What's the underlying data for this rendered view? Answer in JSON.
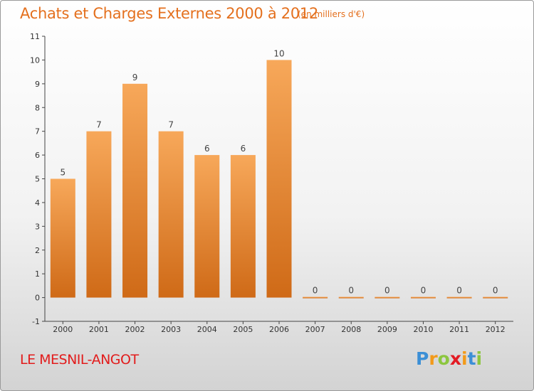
{
  "header": {
    "title": "Achats et Charges Externes 2000 à 2012",
    "unit": "(en milliers d'€)"
  },
  "footer": {
    "commune": "LE MESNIL-ANGOT",
    "logo": [
      "P",
      "r",
      "o",
      "x",
      "i",
      "t",
      "i"
    ]
  },
  "colors": {
    "title": "#e4701e",
    "commune": "#e21c1c",
    "bar_top": "#f7a85a",
    "bar_bottom": "#cf6a17"
  },
  "chart_data": {
    "type": "bar",
    "title": "Achats et Charges Externes 2000 à 2012",
    "categories": [
      "2000",
      "2001",
      "2002",
      "2003",
      "2004",
      "2005",
      "2006",
      "2007",
      "2008",
      "2009",
      "2010",
      "2011",
      "2012"
    ],
    "values": [
      5,
      7,
      9,
      7,
      6,
      6,
      10,
      0,
      0,
      0,
      0,
      0,
      0
    ],
    "value_labels": [
      "5",
      "7",
      "9",
      "7",
      "6",
      "6",
      "10",
      "0",
      "0",
      "0",
      "0",
      "0",
      "0"
    ],
    "ylim": [
      -1,
      11
    ],
    "yticks": [
      "-1",
      "0",
      "1",
      "2",
      "3",
      "4",
      "5",
      "6",
      "7",
      "8",
      "9",
      "10",
      "11"
    ],
    "grid": false,
    "legend": "none"
  }
}
